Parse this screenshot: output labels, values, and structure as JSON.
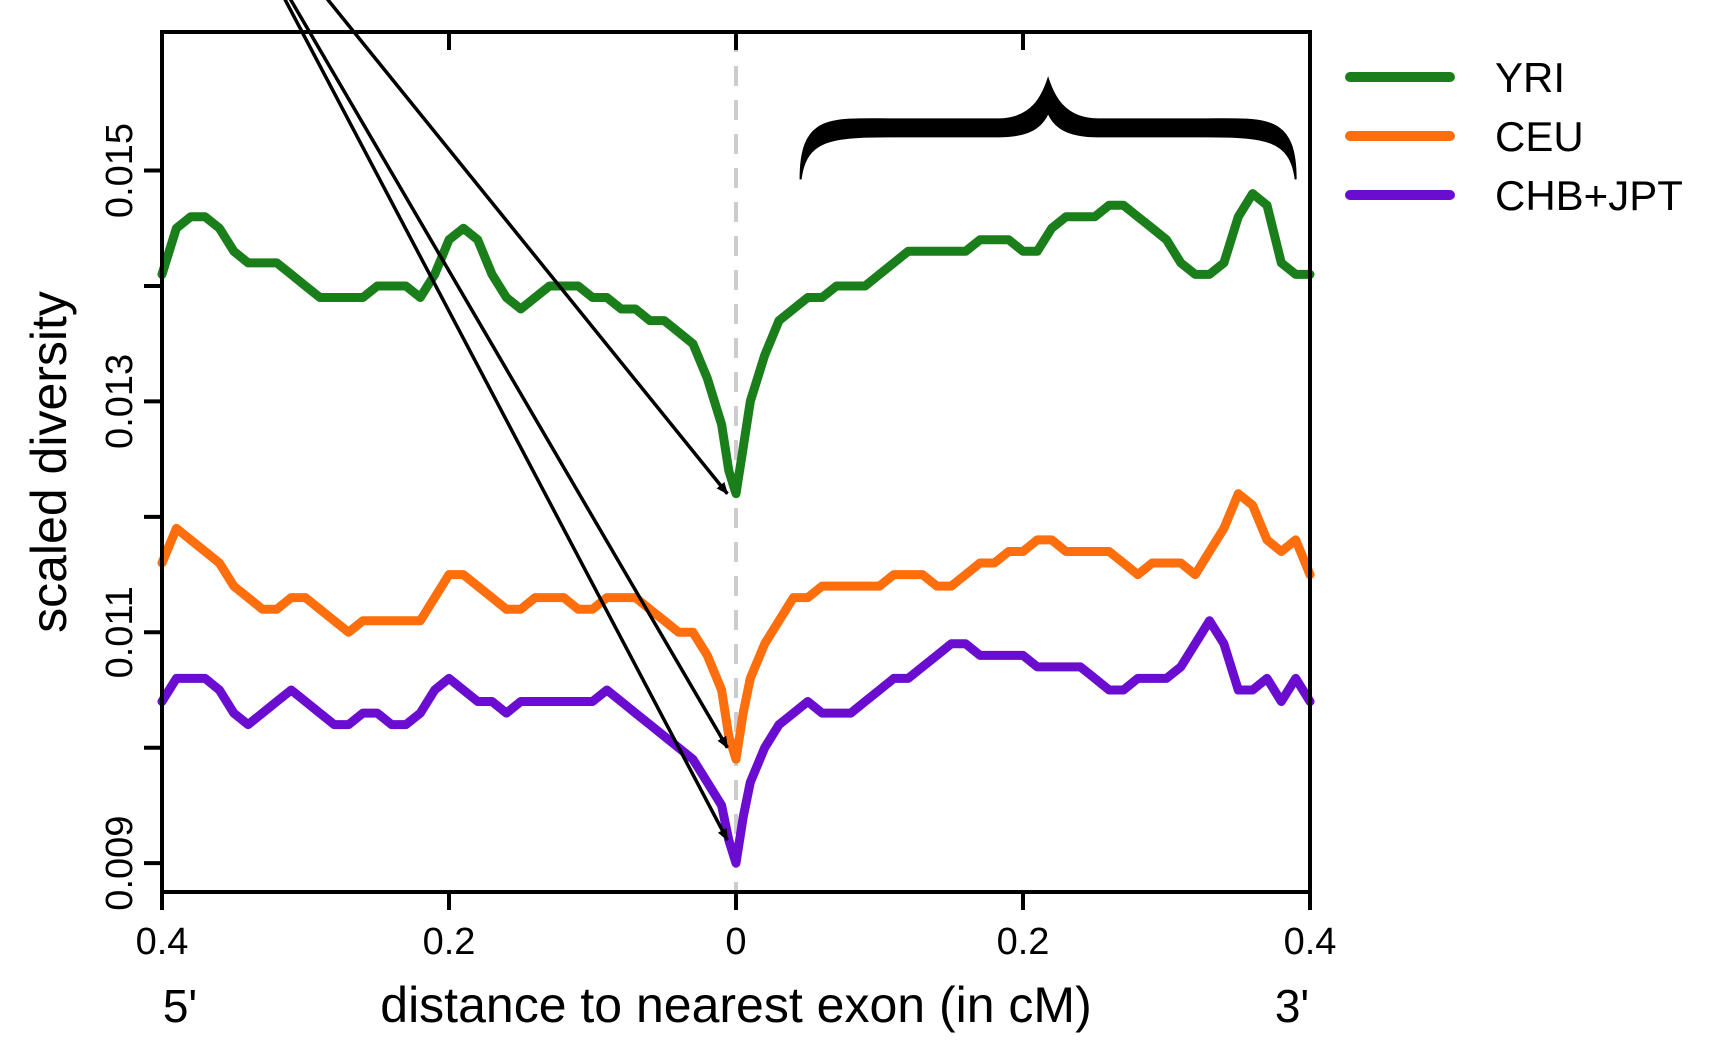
{
  "chart_data": {
    "type": "line",
    "title": "",
    "xlabel": "distance to nearest exon (in cM)",
    "ylabel": "scaled diversity",
    "end_labels": {
      "left": "5'",
      "right": "3'"
    },
    "x_tick_labels": [
      "0.4",
      "0.2",
      "0",
      "0.2",
      "0.4"
    ],
    "x_tick_values": [
      -0.4,
      -0.2,
      0,
      0.2,
      0.4
    ],
    "y_tick_labels": [
      "0.009",
      "0.011",
      "0.013",
      "0.015"
    ],
    "y_tick_values": [
      0.009,
      0.011,
      0.013,
      0.015
    ],
    "xlim": [
      -0.4,
      0.4
    ],
    "ylim": [
      0.00875,
      0.0162
    ],
    "grid": false,
    "reference_line": {
      "x": 0,
      "style": "dashed",
      "color": "#cccccc"
    },
    "legend_position": "right",
    "annotations": [
      {
        "type": "arrow",
        "to_series": "YRI",
        "to": [
          -0.006,
          0.0122
        ]
      },
      {
        "type": "arrow",
        "to_series": "CEU",
        "to": [
          -0.006,
          0.01
        ]
      },
      {
        "type": "arrow",
        "to_series": "CHB+JPT",
        "to": [
          -0.006,
          0.0092
        ]
      },
      {
        "type": "brace",
        "x_range": [
          0.045,
          0.39
        ],
        "y": 0.0154
      }
    ],
    "series": [
      {
        "name": "YRI",
        "color": "#1a7f1a",
        "x": [
          -0.4,
          -0.39,
          -0.38,
          -0.37,
          -0.36,
          -0.35,
          -0.34,
          -0.33,
          -0.32,
          -0.31,
          -0.3,
          -0.29,
          -0.28,
          -0.27,
          -0.26,
          -0.25,
          -0.24,
          -0.23,
          -0.22,
          -0.21,
          -0.2,
          -0.19,
          -0.18,
          -0.17,
          -0.16,
          -0.15,
          -0.14,
          -0.13,
          -0.12,
          -0.11,
          -0.1,
          -0.09,
          -0.08,
          -0.07,
          -0.06,
          -0.05,
          -0.04,
          -0.03,
          -0.02,
          -0.01,
          -0.005,
          0,
          0.005,
          0.01,
          0.02,
          0.03,
          0.04,
          0.05,
          0.06,
          0.07,
          0.08,
          0.09,
          0.1,
          0.11,
          0.12,
          0.13,
          0.14,
          0.15,
          0.16,
          0.17,
          0.18,
          0.19,
          0.2,
          0.21,
          0.22,
          0.23,
          0.24,
          0.25,
          0.26,
          0.27,
          0.28,
          0.29,
          0.3,
          0.31,
          0.32,
          0.33,
          0.34,
          0.35,
          0.36,
          0.37,
          0.38,
          0.39,
          0.4
        ],
        "y": [
          0.0141,
          0.0145,
          0.0146,
          0.0146,
          0.0145,
          0.0143,
          0.0142,
          0.0142,
          0.0142,
          0.0141,
          0.014,
          0.0139,
          0.0139,
          0.0139,
          0.0139,
          0.014,
          0.014,
          0.014,
          0.0139,
          0.0141,
          0.0144,
          0.0145,
          0.0144,
          0.0141,
          0.0139,
          0.0138,
          0.0139,
          0.014,
          0.014,
          0.014,
          0.0139,
          0.0139,
          0.0138,
          0.0138,
          0.0137,
          0.0137,
          0.0136,
          0.0135,
          0.0132,
          0.0128,
          0.0124,
          0.0122,
          0.0126,
          0.013,
          0.0134,
          0.0137,
          0.0138,
          0.0139,
          0.0139,
          0.014,
          0.014,
          0.014,
          0.0141,
          0.0142,
          0.0143,
          0.0143,
          0.0143,
          0.0143,
          0.0143,
          0.0144,
          0.0144,
          0.0144,
          0.0143,
          0.0143,
          0.0145,
          0.0146,
          0.0146,
          0.0146,
          0.0147,
          0.0147,
          0.0146,
          0.0145,
          0.0144,
          0.0142,
          0.0141,
          0.0141,
          0.0142,
          0.0146,
          0.0148,
          0.0147,
          0.0142,
          0.0141,
          0.0141
        ]
      },
      {
        "name": "CEU",
        "color": "#ff6e0d",
        "x": [
          -0.4,
          -0.39,
          -0.38,
          -0.37,
          -0.36,
          -0.35,
          -0.34,
          -0.33,
          -0.32,
          -0.31,
          -0.3,
          -0.29,
          -0.28,
          -0.27,
          -0.26,
          -0.25,
          -0.24,
          -0.23,
          -0.22,
          -0.21,
          -0.2,
          -0.19,
          -0.18,
          -0.17,
          -0.16,
          -0.15,
          -0.14,
          -0.13,
          -0.12,
          -0.11,
          -0.1,
          -0.09,
          -0.08,
          -0.07,
          -0.06,
          -0.05,
          -0.04,
          -0.03,
          -0.02,
          -0.01,
          -0.005,
          0,
          0.005,
          0.01,
          0.02,
          0.03,
          0.04,
          0.05,
          0.06,
          0.07,
          0.08,
          0.09,
          0.1,
          0.11,
          0.12,
          0.13,
          0.14,
          0.15,
          0.16,
          0.17,
          0.18,
          0.19,
          0.2,
          0.21,
          0.22,
          0.23,
          0.24,
          0.25,
          0.26,
          0.27,
          0.28,
          0.29,
          0.3,
          0.31,
          0.32,
          0.33,
          0.34,
          0.35,
          0.36,
          0.37,
          0.38,
          0.39,
          0.4
        ],
        "y": [
          0.0116,
          0.0119,
          0.0118,
          0.0117,
          0.0116,
          0.0114,
          0.0113,
          0.0112,
          0.0112,
          0.0113,
          0.0113,
          0.0112,
          0.0111,
          0.011,
          0.0111,
          0.0111,
          0.0111,
          0.0111,
          0.0111,
          0.0113,
          0.0115,
          0.0115,
          0.0114,
          0.0113,
          0.0112,
          0.0112,
          0.0113,
          0.0113,
          0.0113,
          0.0112,
          0.0112,
          0.0113,
          0.0113,
          0.0113,
          0.0112,
          0.0111,
          0.011,
          0.011,
          0.0108,
          0.0105,
          0.0101,
          0.0099,
          0.0103,
          0.0106,
          0.0109,
          0.0111,
          0.0113,
          0.0113,
          0.0114,
          0.0114,
          0.0114,
          0.0114,
          0.0114,
          0.0115,
          0.0115,
          0.0115,
          0.0114,
          0.0114,
          0.0115,
          0.0116,
          0.0116,
          0.0117,
          0.0117,
          0.0118,
          0.0118,
          0.0117,
          0.0117,
          0.0117,
          0.0117,
          0.0116,
          0.0115,
          0.0116,
          0.0116,
          0.0116,
          0.0115,
          0.0117,
          0.0119,
          0.0122,
          0.0121,
          0.0118,
          0.0117,
          0.0118,
          0.0115
        ]
      },
      {
        "name": "CHB+JPT",
        "color": "#6a0dd1",
        "x": [
          -0.4,
          -0.39,
          -0.38,
          -0.37,
          -0.36,
          -0.35,
          -0.34,
          -0.33,
          -0.32,
          -0.31,
          -0.3,
          -0.29,
          -0.28,
          -0.27,
          -0.26,
          -0.25,
          -0.24,
          -0.23,
          -0.22,
          -0.21,
          -0.2,
          -0.19,
          -0.18,
          -0.17,
          -0.16,
          -0.15,
          -0.14,
          -0.13,
          -0.12,
          -0.11,
          -0.1,
          -0.09,
          -0.08,
          -0.07,
          -0.06,
          -0.05,
          -0.04,
          -0.03,
          -0.02,
          -0.01,
          -0.005,
          0,
          0.005,
          0.01,
          0.02,
          0.03,
          0.04,
          0.05,
          0.06,
          0.07,
          0.08,
          0.09,
          0.1,
          0.11,
          0.12,
          0.13,
          0.14,
          0.15,
          0.16,
          0.17,
          0.18,
          0.19,
          0.2,
          0.21,
          0.22,
          0.23,
          0.24,
          0.25,
          0.26,
          0.27,
          0.28,
          0.29,
          0.3,
          0.31,
          0.32,
          0.33,
          0.34,
          0.35,
          0.36,
          0.37,
          0.38,
          0.39,
          0.4
        ],
        "y": [
          0.0104,
          0.0106,
          0.0106,
          0.0106,
          0.0105,
          0.0103,
          0.0102,
          0.0103,
          0.0104,
          0.0105,
          0.0104,
          0.0103,
          0.0102,
          0.0102,
          0.0103,
          0.0103,
          0.0102,
          0.0102,
          0.0103,
          0.0105,
          0.0106,
          0.0105,
          0.0104,
          0.0104,
          0.0103,
          0.0104,
          0.0104,
          0.0104,
          0.0104,
          0.0104,
          0.0104,
          0.0105,
          0.0104,
          0.0103,
          0.0102,
          0.0101,
          0.01,
          0.0099,
          0.0097,
          0.0095,
          0.0092,
          0.009,
          0.0094,
          0.0097,
          0.01,
          0.0102,
          0.0103,
          0.0104,
          0.0103,
          0.0103,
          0.0103,
          0.0104,
          0.0105,
          0.0106,
          0.0106,
          0.0107,
          0.0108,
          0.0109,
          0.0109,
          0.0108,
          0.0108,
          0.0108,
          0.0108,
          0.0107,
          0.0107,
          0.0107,
          0.0107,
          0.0106,
          0.0105,
          0.0105,
          0.0106,
          0.0106,
          0.0106,
          0.0107,
          0.0109,
          0.0111,
          0.0109,
          0.0105,
          0.0105,
          0.0106,
          0.0104,
          0.0106,
          0.0104
        ]
      }
    ]
  }
}
